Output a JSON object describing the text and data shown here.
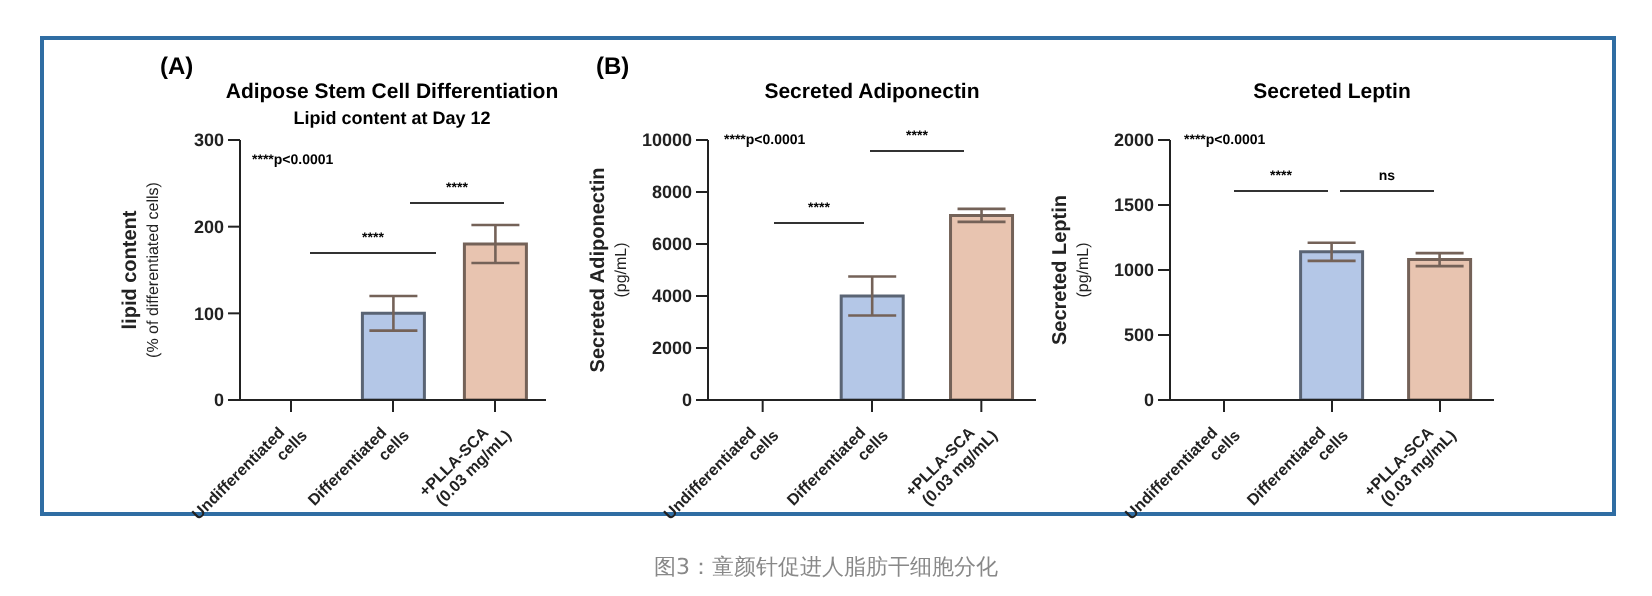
{
  "chart_data": [
    {
      "type": "bar",
      "title": "Adipose Stem Cell Differentiation",
      "subtitle": "Lipid content at Day 12",
      "ylabel": "lipid content\n(% of differentiated cells)",
      "categories": [
        "Undifferentiated cells",
        "Differentiated cells",
        "+PLLA-SCA (0.03 mg/mL)"
      ],
      "values": [
        0,
        100,
        180
      ],
      "errors": [
        null,
        20,
        22
      ],
      "colors": [
        "#b4c7e7",
        "#b4c7e7",
        "#e8c4b0"
      ],
      "ylim": [
        0,
        300
      ],
      "yticks": [
        0,
        100,
        200,
        300
      ],
      "grid": false,
      "legend": false,
      "annotations": [
        "(A)",
        "****p<0.0001",
        "****",
        "****",
        "图3：童颜针促进人脂肪干细胞分化"
      ]
    },
    {
      "type": "bar",
      "title": "Secreted Adiponectin",
      "ylabel": "Secreted Adiponectin\n(pg/mL)",
      "categories": [
        "Undifferentiated cells",
        "Differentiated cells",
        "+PLLA-SCA (0.03 mg/mL)"
      ],
      "values": [
        0,
        4000,
        7100
      ],
      "errors": [
        null,
        750,
        250
      ],
      "colors": [
        "#b4c7e7",
        "#b4c7e7",
        "#e8c4b0"
      ],
      "ylim": [
        0,
        10000
      ],
      "yticks": [
        0,
        2000,
        4000,
        6000,
        8000,
        10000
      ],
      "grid": false,
      "legend": false,
      "annotations": [
        "(B)",
        "****p<0.0001",
        "****",
        "****"
      ]
    },
    {
      "type": "bar",
      "title": "Secreted Leptin",
      "ylabel": "Secreted Leptin\n(pg/mL)",
      "categories": [
        "Undifferentiated cells",
        "Differentiated cells",
        "+PLLA-SCA (0.03 mg/mL)"
      ],
      "values": [
        0,
        1140,
        1080
      ],
      "errors": [
        null,
        70,
        50
      ],
      "colors": [
        "#b4c7e7",
        "#b4c7e7",
        "#e8c4b0"
      ],
      "ylim": [
        0,
        2000
      ],
      "yticks": [
        0,
        500,
        1000,
        1500,
        2000
      ],
      "grid": false,
      "legend": false,
      "annotations": [
        "****p<0.0001",
        "****",
        "ns"
      ]
    }
  ]
}
